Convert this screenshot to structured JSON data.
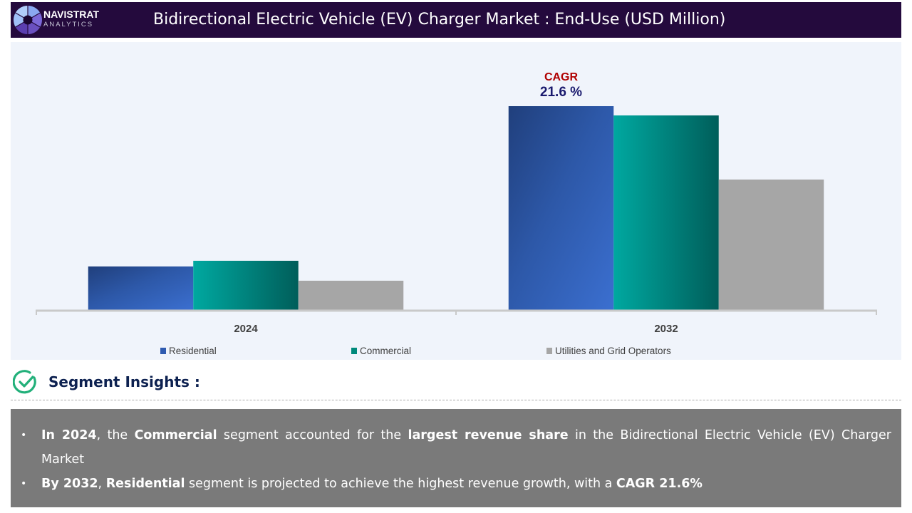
{
  "header": {
    "brand_name": "NAVISTRAT",
    "brand_sub": "ANALYTICS",
    "title": "Bidirectional Electric Vehicle (EV) Charger Market : End-Use (USD Million)",
    "background_color": "#240a3d"
  },
  "chart_data": {
    "type": "bar",
    "title": "Bidirectional Electric Vehicle (EV) Charger Market : End-Use (USD Million)",
    "xlabel": "",
    "ylabel": "",
    "categories": [
      "2024",
      "2032"
    ],
    "series": [
      {
        "name": "Residential",
        "color": "#2f5bb0",
        "values": [
          61,
          286
        ]
      },
      {
        "name": "Commercial",
        "color": "#009688",
        "values": [
          69,
          273
        ]
      },
      {
        "name": "Utilities and Grid Operators",
        "color": "#a6a6a6",
        "values": [
          41,
          183
        ]
      }
    ],
    "values_note": "relative magnitudes; no y-axis shown",
    "ylim": [
      0,
      300
    ],
    "grid": false,
    "legend_position": "bottom",
    "annotation": {
      "label": "CAGR",
      "value": "21.6 %",
      "category": "2032",
      "series": "Residential"
    }
  },
  "insights": {
    "heading": "Segment Insights :",
    "bullets": [
      [
        {
          "t": "In 2024",
          "b": true
        },
        {
          "t": ", the ",
          "b": false
        },
        {
          "t": "Commercial",
          "b": true
        },
        {
          "t": " segment accounted for the ",
          "b": false
        },
        {
          "t": "largest revenue share",
          "b": true
        },
        {
          "t": " in the Bidirectional Electric Vehicle (EV) Charger Market",
          "b": false
        }
      ],
      [
        {
          "t": "By 2032",
          "b": true
        },
        {
          "t": ", ",
          "b": false
        },
        {
          "t": "Residential",
          "b": true
        },
        {
          "t": " segment is projected to achieve the highest revenue growth, with a ",
          "b": false
        },
        {
          "t": "CAGR 21.6%",
          "b": true
        }
      ]
    ]
  }
}
